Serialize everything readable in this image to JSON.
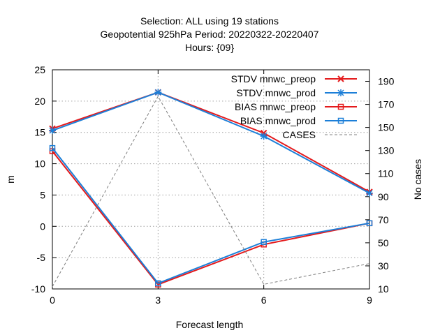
{
  "chart_data": {
    "type": "line",
    "title_lines": [
      "Selection: ALL using    19 stations",
      "Geopotential 925hPa   Period: 20220322-20220407",
      "Hours: {09}"
    ],
    "xlabel": "Forecast length",
    "ylabel": "m",
    "y2label": "No cases",
    "x": [
      0,
      3,
      6,
      9
    ],
    "xlim": [
      0,
      9
    ],
    "ylim": [
      -10,
      25
    ],
    "y2lim": [
      10,
      200
    ],
    "xticks": [
      "0",
      "3",
      "6",
      "9"
    ],
    "yticks": [
      "-10",
      "-5",
      "0",
      "5",
      "10",
      "15",
      "20",
      "25"
    ],
    "y2ticks": [
      "10",
      "30",
      "50",
      "70",
      "90",
      "110",
      "130",
      "150",
      "170",
      "190"
    ],
    "grid": true,
    "legend_position": "top-right",
    "series": [
      {
        "name": "STDV mnwc_preop",
        "axis": "y1",
        "color": "#e41a1c",
        "marker": "x",
        "values": [
          15.6,
          21.4,
          14.9,
          5.5
        ]
      },
      {
        "name": "STDV mnwc_prod",
        "axis": "y1",
        "color": "#1c7fd8",
        "marker": "star",
        "values": [
          15.3,
          21.4,
          14.4,
          5.3
        ]
      },
      {
        "name": "BIAS mnwc_preop",
        "axis": "y1",
        "color": "#e41a1c",
        "marker": "square",
        "values": [
          12.0,
          -9.3,
          -2.9,
          0.5
        ]
      },
      {
        "name": "BIAS mnwc_prod",
        "axis": "y1",
        "color": "#1c7fd8",
        "marker": "square",
        "values": [
          12.5,
          -9.1,
          -2.5,
          0.5
        ]
      },
      {
        "name": "CASES",
        "axis": "y2",
        "color": "#808080",
        "marker": "none",
        "dashed": true,
        "values": [
          12,
          177,
          14,
          32
        ]
      }
    ]
  }
}
